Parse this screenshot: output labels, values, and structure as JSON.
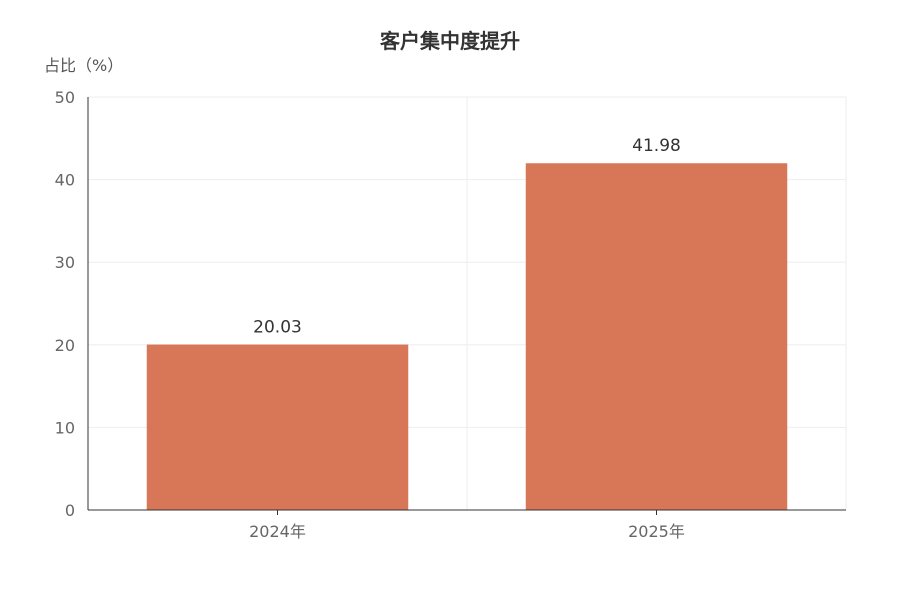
{
  "chart_data": {
    "type": "bar",
    "title": "客户集中度提升",
    "xlabel": "",
    "ylabel": "占比（%）",
    "categories": [
      "2024年",
      "2025年"
    ],
    "series": [
      {
        "values": [
          20.03,
          41.98
        ]
      }
    ],
    "data_labels": [
      "20.03",
      "41.98"
    ],
    "ylim": [
      0,
      50
    ],
    "yticks": [
      0,
      10,
      20,
      30,
      40,
      50
    ],
    "grid": true,
    "legend": "none",
    "colors": {
      "bar": "#d87758",
      "axis": "#333333",
      "grid": "#eeeeee",
      "text": "#666666",
      "title": "#333333"
    }
  }
}
